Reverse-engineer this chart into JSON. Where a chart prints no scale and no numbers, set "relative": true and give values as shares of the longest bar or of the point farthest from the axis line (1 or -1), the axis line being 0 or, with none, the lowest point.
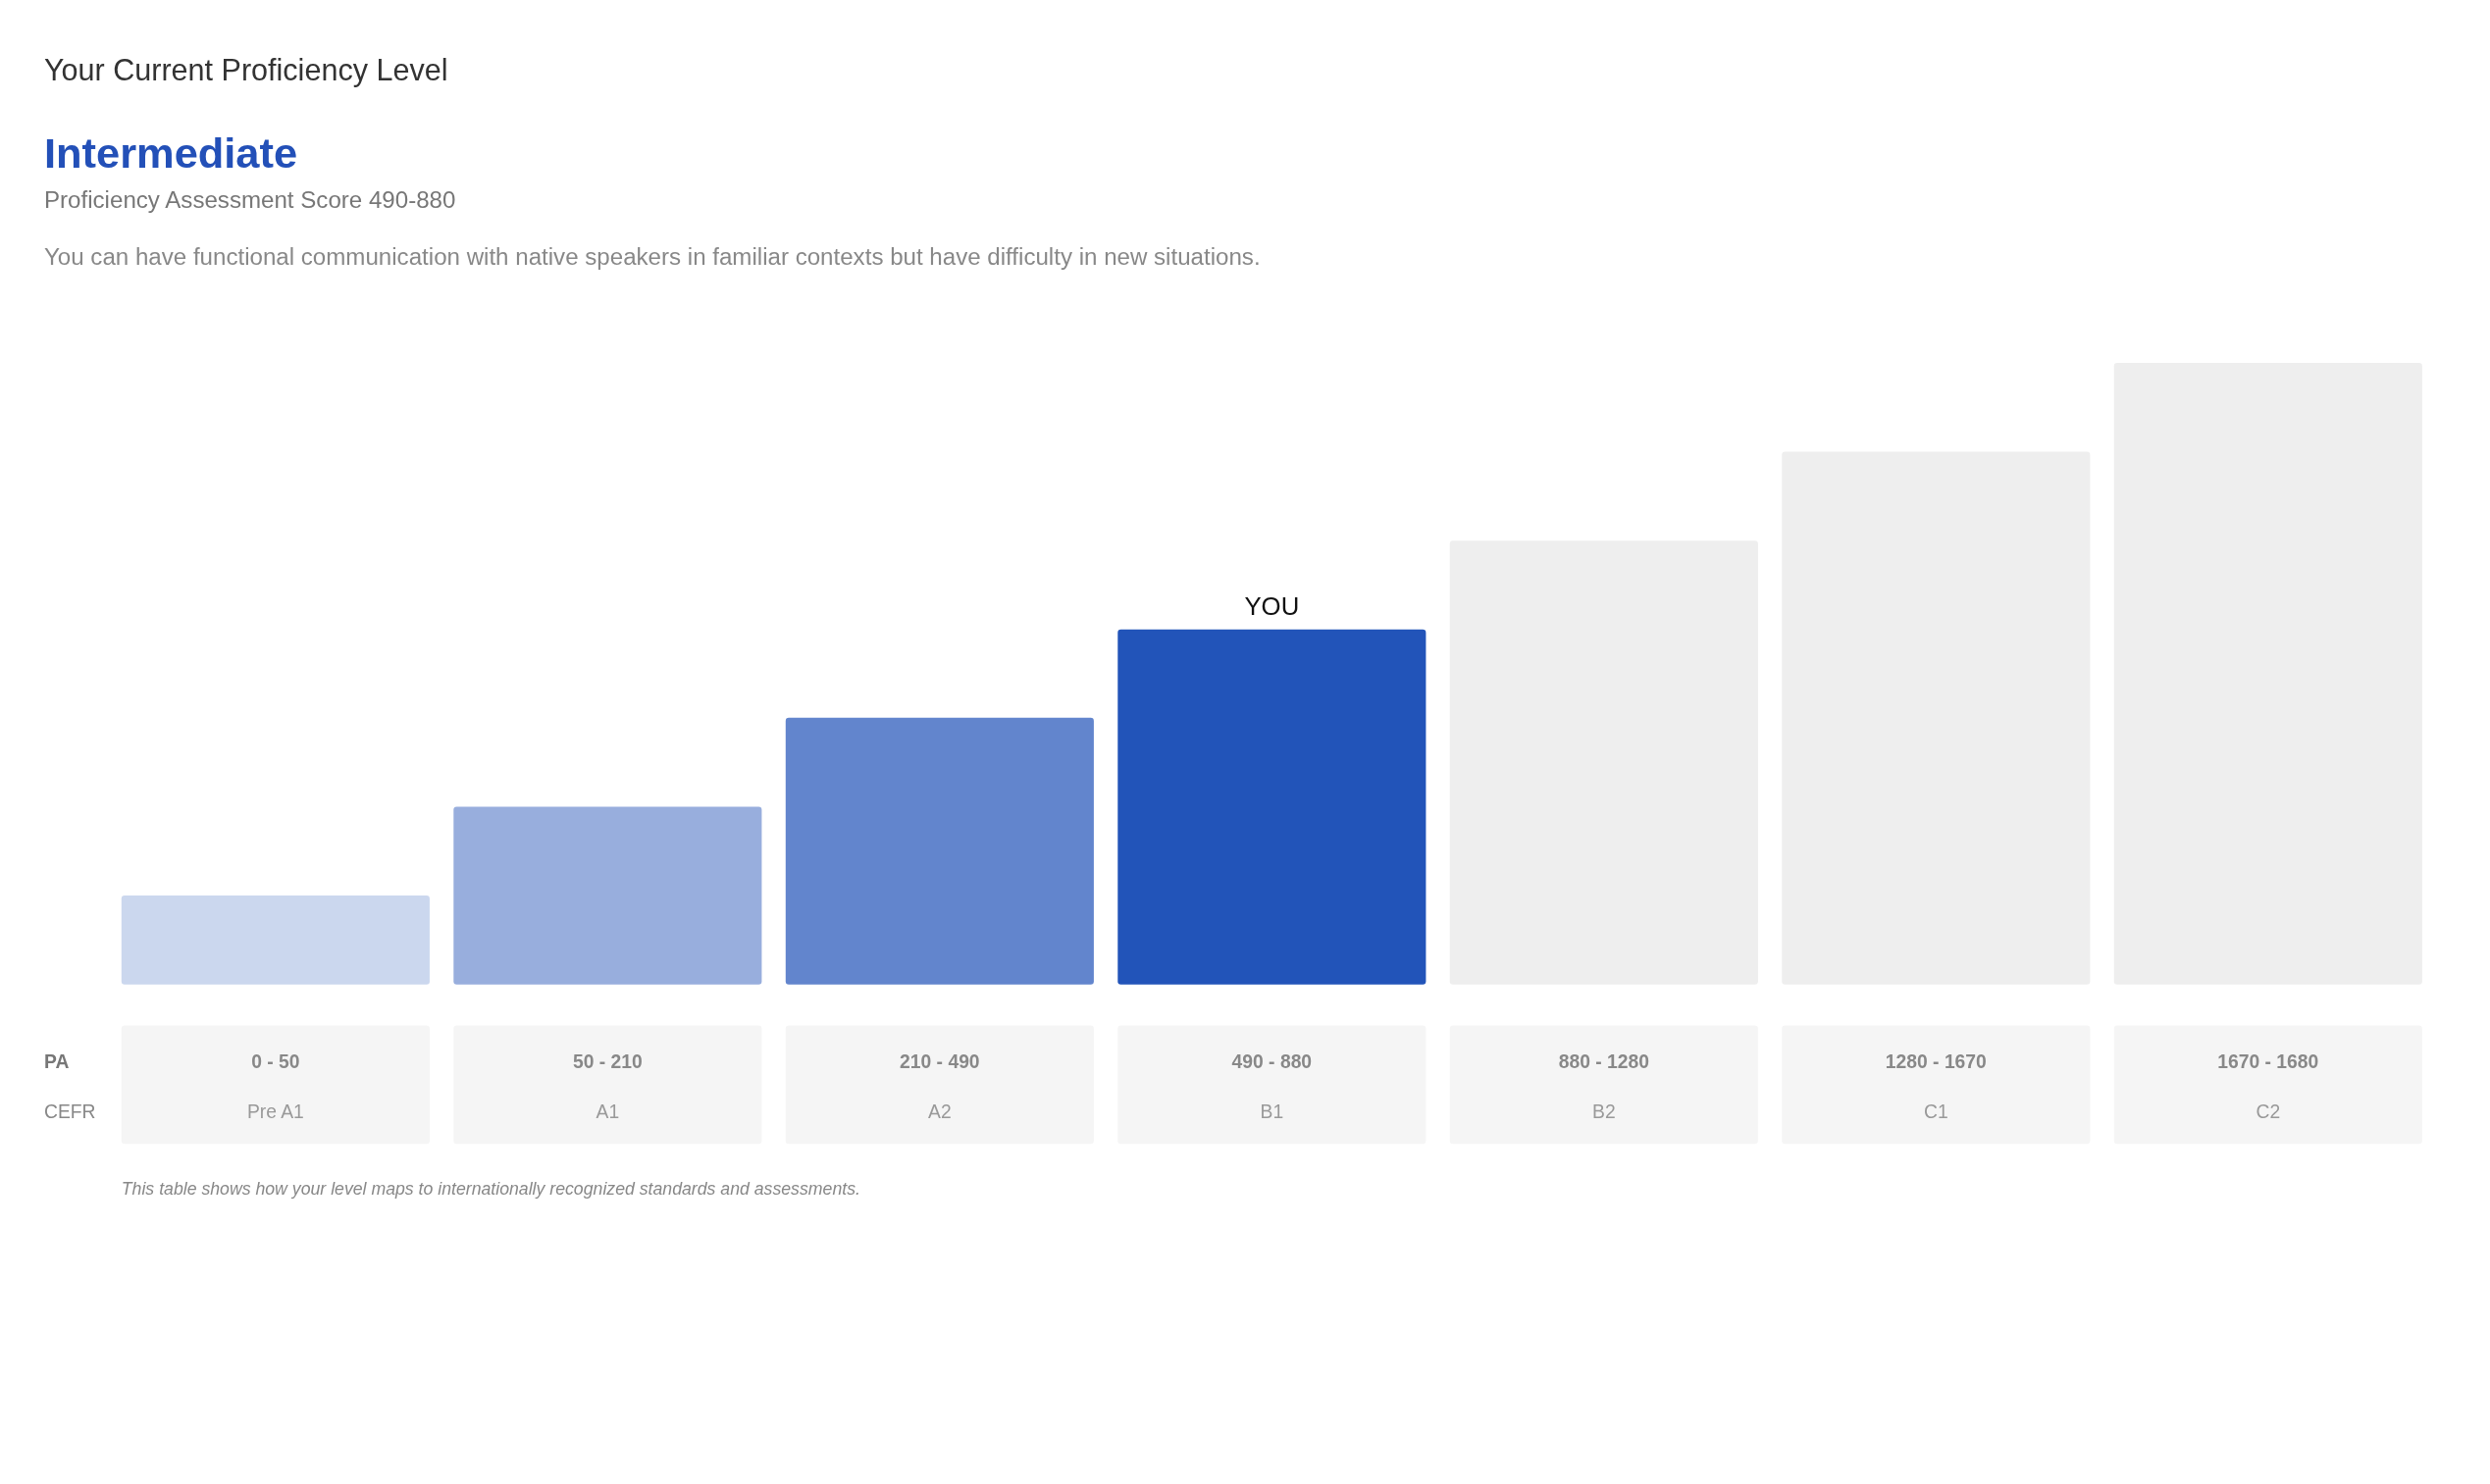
{
  "chart_data": {
    "type": "bar",
    "title": "Your Current Proficiency Level",
    "subtitle": "Intermediate",
    "xlabel": "PA",
    "relative": true,
    "categories": [
      "0 - 50",
      "50 - 210",
      "210 - 490",
      "490 - 880",
      "880 - 1280",
      "1280 - 1670",
      "1670 - 1680"
    ],
    "values": [
      0.143,
      0.286,
      0.429,
      0.571,
      0.714,
      0.857,
      1
    ],
    "colors": [
      "#cbd7ee",
      "#98aedd",
      "#6285cd",
      "#2254b9",
      "#eeeeee",
      "#eeeeee",
      "#eeeeee"
    ],
    "annotations": [
      "Proficiency Assessment Score 490-880",
      "You can have functional communication with native speakers in familiar contexts but have difficulty in new situations.",
      "CEFR",
      "Pre A1",
      "A1",
      "A2",
      "B1",
      "B2",
      "C1",
      "C2",
      {
        "text": "YOU",
        "x": "490 - 880",
        "y": 0.571
      },
      "This table shows how your level maps to internationally recognized standards and assessments."
    ]
  }
}
